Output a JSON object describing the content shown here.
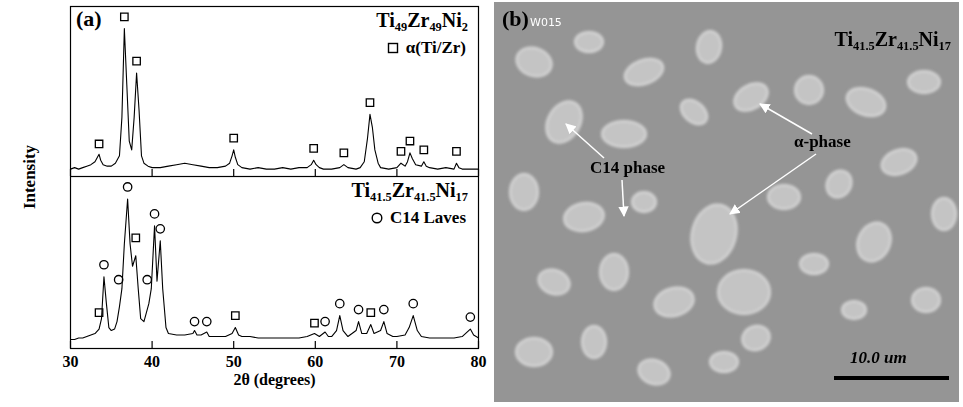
{
  "figure": {
    "label": "(a)",
    "ylabel": "Intensity"
  },
  "chart_data": [
    {
      "type": "line",
      "title": "Ti49Zr49Ni2",
      "xlim": [
        30,
        80
      ],
      "xticks": [
        30,
        40,
        50,
        60,
        70,
        80
      ],
      "ylim": [
        0,
        115
      ],
      "yticks": [],
      "tick_labels": false,
      "legend": "top-right",
      "series": [
        {
          "type": "line",
          "color": "#000000",
          "x": [
            30,
            30.5,
            31,
            31.5,
            32,
            32.5,
            33,
            33.3,
            33.5,
            33.7,
            34,
            34.5,
            35,
            35.5,
            36,
            36.3,
            36.6,
            36.9,
            37.2,
            37.5,
            37.8,
            38.1,
            38.4,
            38.7,
            39,
            39.5,
            40,
            41,
            42,
            43,
            44,
            45,
            46,
            47,
            48,
            49,
            49.5,
            49.8,
            50,
            50.2,
            50.5,
            51,
            52,
            53,
            54,
            55,
            56,
            57,
            58,
            59,
            59.5,
            59.8,
            60.1,
            60.5,
            61,
            62,
            63,
            63.5,
            64,
            65,
            65.5,
            66,
            66.4,
            66.7,
            67,
            67.3,
            67.7,
            68,
            69,
            70,
            70.5,
            71,
            71.3,
            71.6,
            71.9,
            72.3,
            73,
            73.3,
            73.6,
            74,
            75,
            76,
            77,
            77.3,
            77.6,
            78,
            79,
            80
          ],
          "values": [
            5,
            6,
            5,
            6,
            7,
            8,
            10,
            13,
            15,
            11,
            8,
            7,
            7,
            9,
            14,
            40,
            100,
            62,
            24,
            18,
            40,
            70,
            45,
            14,
            9,
            7,
            6,
            6,
            7,
            8,
            9,
            8,
            7,
            6,
            6,
            7,
            9,
            14,
            18,
            13,
            8,
            6,
            5,
            6,
            5,
            5,
            6,
            5,
            6,
            6,
            8,
            11,
            8,
            6,
            5,
            5,
            6,
            8,
            6,
            5,
            6,
            10,
            26,
            42,
            33,
            18,
            9,
            6,
            5,
            6,
            9,
            7,
            10,
            16,
            12,
            8,
            7,
            10,
            7,
            6,
            5,
            6,
            5,
            9,
            6,
            5,
            5,
            5
          ]
        },
        {
          "name": "α(Ti/Zr)",
          "type": "scatter",
          "marker": "square",
          "color": "#000000",
          "x": [
            33.5,
            36.6,
            38.1,
            50,
            59.8,
            63.5,
            66.7,
            70.5,
            71.6,
            73.3,
            77.3
          ],
          "values": [
            22,
            108,
            78,
            26,
            19,
            16,
            50,
            17,
            24,
            18,
            17
          ]
        }
      ]
    },
    {
      "type": "line",
      "title": "Ti41.5Zr41.5Ni17",
      "xlabel": "2θ (degrees)",
      "xlim": [
        30,
        80
      ],
      "xticks": [
        30,
        40,
        50,
        60,
        70,
        80
      ],
      "ylim": [
        0,
        115
      ],
      "yticks": [],
      "tick_labels": "x",
      "legend": "top-right",
      "series": [
        {
          "type": "line",
          "color": "#000000",
          "x": [
            30,
            30.5,
            31,
            31.5,
            32,
            32.5,
            33,
            33.5,
            33.8,
            34.1,
            34.4,
            34.7,
            35,
            35.4,
            35.7,
            36,
            36.3,
            36.6,
            37,
            37.3,
            37.6,
            38,
            38.3,
            38.6,
            39,
            39.3,
            39.6,
            39.9,
            40.3,
            40.6,
            41,
            41.3,
            41.7,
            42,
            43,
            44,
            45,
            45.2,
            45.5,
            46,
            46.7,
            47,
            48,
            49,
            49.8,
            50.2,
            50.6,
            51,
            52,
            53,
            54,
            55,
            56,
            57,
            58,
            59,
            59.9,
            60.5,
            61.2,
            61.6,
            62,
            62.6,
            63,
            63.4,
            64,
            65,
            65.3,
            65.7,
            66.3,
            66.8,
            67.2,
            68,
            68.4,
            68.8,
            69.5,
            70,
            71,
            71.5,
            72,
            72.5,
            73,
            74,
            75,
            76,
            77,
            78,
            79,
            79.4,
            80
          ],
          "values": [
            6,
            6,
            7,
            7,
            8,
            9,
            10,
            13,
            20,
            48,
            30,
            14,
            12,
            13,
            18,
            28,
            40,
            70,
            100,
            70,
            55,
            62,
            40,
            20,
            18,
            24,
            30,
            40,
            82,
            45,
            72,
            40,
            14,
            10,
            9,
            9,
            10,
            12,
            9,
            9,
            11,
            8,
            8,
            8,
            10,
            14,
            9,
            8,
            8,
            7,
            7,
            7,
            7,
            7,
            7,
            8,
            10,
            8,
            11,
            8,
            8,
            12,
            22,
            12,
            8,
            12,
            18,
            10,
            10,
            16,
            10,
            12,
            18,
            10,
            8,
            8,
            9,
            14,
            22,
            12,
            8,
            7,
            7,
            7,
            7,
            8,
            13,
            9,
            7
          ]
        },
        {
          "name": "C14 Laves",
          "type": "scatter",
          "marker": "circle",
          "color": "#000000",
          "x": [
            34.1,
            35.9,
            37,
            39.4,
            40.3,
            41,
            45.2,
            46.7,
            61.2,
            63,
            65.3,
            68.4,
            72,
            79
          ],
          "values": [
            56,
            46,
            108,
            46,
            90,
            80,
            18,
            18,
            18,
            30,
            26,
            26,
            30,
            21
          ]
        },
        {
          "type": "scatter",
          "marker": "square",
          "color": "#000000",
          "x": [
            33.5,
            38,
            50.2,
            59.9,
            66.8
          ],
          "values": [
            24,
            74,
            22,
            17,
            24
          ]
        }
      ]
    }
  ],
  "micrograph": {
    "label": "(b)",
    "title": "Ti41.5Zr41.5Ni17",
    "stamp": "W015",
    "annotations": [
      "C14 phase",
      "α-phase"
    ],
    "scale_bar": "10.0 um"
  }
}
